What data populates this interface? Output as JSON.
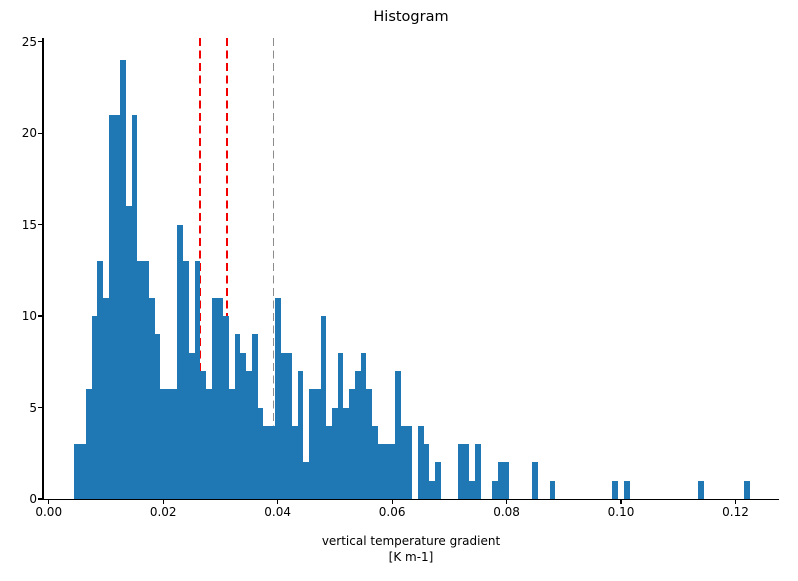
{
  "title": "Histogram",
  "xlabel": {
    "line1": "vertical temperature gradient",
    "line2": "[K m-1]"
  },
  "axes": {
    "xtick_labels": [
      "0.00",
      "0.02",
      "0.04",
      "0.06",
      "0.08",
      "0.10",
      "0.12"
    ],
    "ytick_labels": [
      "0",
      "5",
      "10",
      "15",
      "20",
      "25"
    ]
  },
  "chart_data": {
    "type": "bar",
    "subtype": "histogram",
    "title": "Histogram",
    "xlabel": "vertical temperature gradient [K m-1]",
    "ylabel": "",
    "bar_color": "#1f77b4",
    "bin_width": 0.001,
    "xlim": [
      -0.001,
      0.1276
    ],
    "ylim": [
      0,
      25.2
    ],
    "xticks": [
      0.0,
      0.02,
      0.04,
      0.06,
      0.08,
      0.1,
      0.12
    ],
    "yticks": [
      0,
      5,
      10,
      15,
      20,
      25
    ],
    "grid": false,
    "legend": false,
    "bins": [
      [
        0.0045,
        3
      ],
      [
        0.0055,
        3
      ],
      [
        0.0065,
        6
      ],
      [
        0.0075,
        10
      ],
      [
        0.0085,
        13
      ],
      [
        0.0095,
        11
      ],
      [
        0.0105,
        21
      ],
      [
        0.0115,
        21
      ],
      [
        0.0125,
        24
      ],
      [
        0.0135,
        16
      ],
      [
        0.0145,
        21
      ],
      [
        0.0155,
        13
      ],
      [
        0.0165,
        13
      ],
      [
        0.0175,
        11
      ],
      [
        0.0185,
        9
      ],
      [
        0.0195,
        6
      ],
      [
        0.0205,
        6
      ],
      [
        0.0215,
        6
      ],
      [
        0.0225,
        15
      ],
      [
        0.0235,
        13
      ],
      [
        0.0245,
        8
      ],
      [
        0.0255,
        13
      ],
      [
        0.0265,
        7
      ],
      [
        0.0275,
        6
      ],
      [
        0.0285,
        11
      ],
      [
        0.0295,
        11
      ],
      [
        0.0305,
        10
      ],
      [
        0.0315,
        6
      ],
      [
        0.0325,
        9
      ],
      [
        0.0335,
        8
      ],
      [
        0.0345,
        7
      ],
      [
        0.0355,
        9
      ],
      [
        0.0365,
        5
      ],
      [
        0.0375,
        4
      ],
      [
        0.0385,
        4
      ],
      [
        0.0395,
        11
      ],
      [
        0.0405,
        8
      ],
      [
        0.0415,
        8
      ],
      [
        0.0425,
        4
      ],
      [
        0.0435,
        7
      ],
      [
        0.0445,
        2
      ],
      [
        0.0455,
        6
      ],
      [
        0.0465,
        6
      ],
      [
        0.0475,
        10
      ],
      [
        0.0485,
        4
      ],
      [
        0.0495,
        5
      ],
      [
        0.0505,
        8
      ],
      [
        0.0515,
        5
      ],
      [
        0.0525,
        6
      ],
      [
        0.0535,
        7
      ],
      [
        0.0545,
        8
      ],
      [
        0.0555,
        6
      ],
      [
        0.0565,
        4
      ],
      [
        0.0575,
        3
      ],
      [
        0.0585,
        3
      ],
      [
        0.0595,
        3
      ],
      [
        0.0605,
        7
      ],
      [
        0.0615,
        4
      ],
      [
        0.0625,
        4
      ],
      [
        0.0645,
        4
      ],
      [
        0.0655,
        3
      ],
      [
        0.0665,
        1
      ],
      [
        0.0675,
        2
      ],
      [
        0.0715,
        3
      ],
      [
        0.0725,
        3
      ],
      [
        0.0735,
        1
      ],
      [
        0.0745,
        3
      ],
      [
        0.0775,
        1
      ],
      [
        0.0785,
        2
      ],
      [
        0.0795,
        2
      ],
      [
        0.0845,
        2
      ],
      [
        0.0875,
        1
      ],
      [
        0.0985,
        1
      ],
      [
        0.1005,
        1
      ],
      [
        0.1135,
        1
      ],
      [
        0.1215,
        1
      ]
    ],
    "vlines": [
      {
        "x": 0.0264,
        "color": "#f20000",
        "style": "dashed",
        "name": "red-dashed-line-1"
      },
      {
        "x": 0.0312,
        "color": "#f20000",
        "style": "dashed",
        "name": "red-dashed-line-2"
      },
      {
        "x": 0.0393,
        "color": "#8c8c8c",
        "style": "dashed",
        "name": "gray-dashed-line"
      }
    ]
  }
}
